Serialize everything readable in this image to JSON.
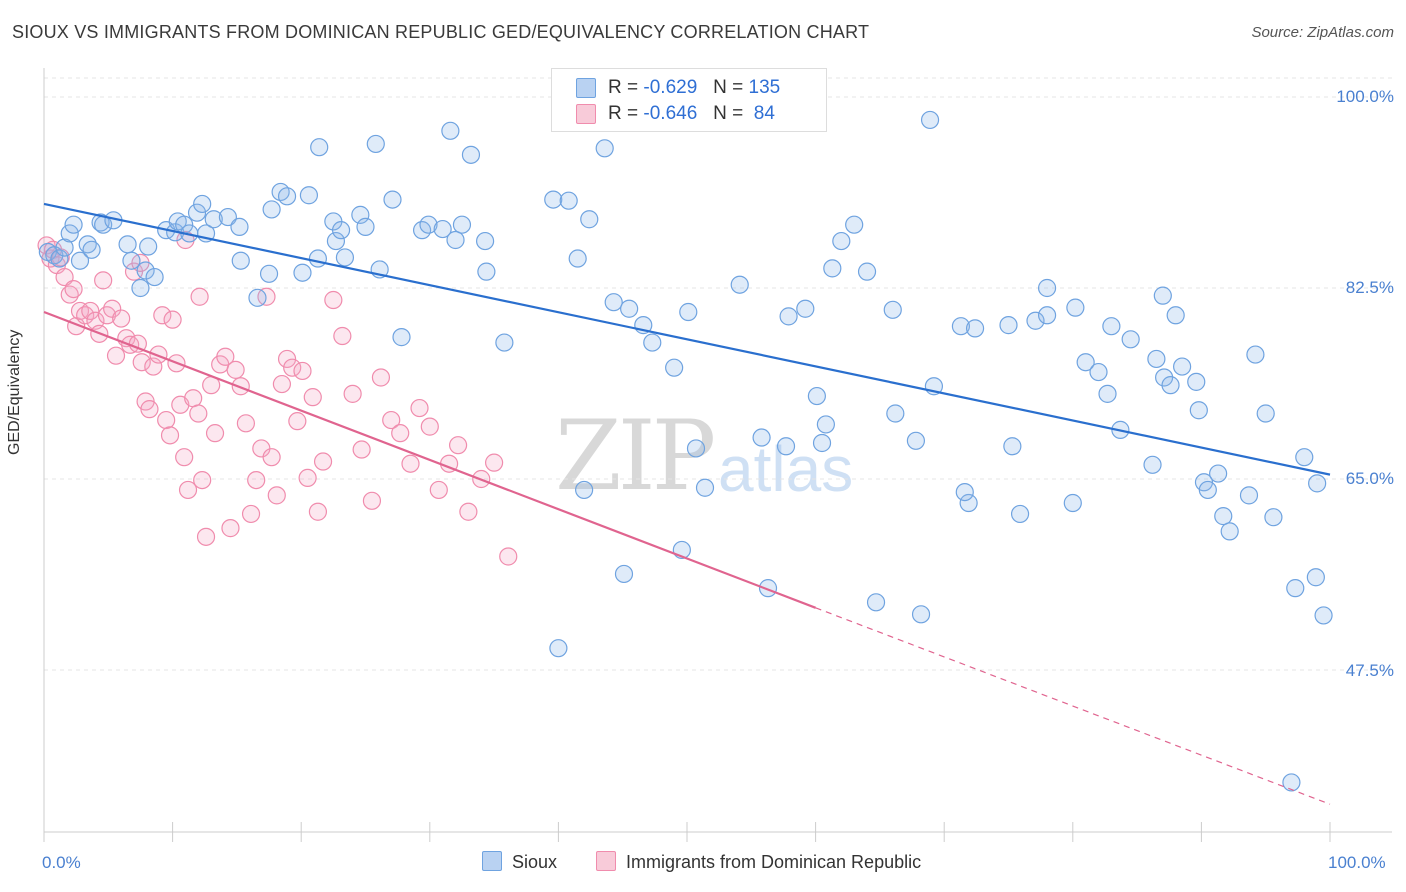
{
  "header": {
    "title": "SIOUX VS IMMIGRANTS FROM DOMINICAN REPUBLIC GED/EQUIVALENCY CORRELATION CHART",
    "source": "Source: ZipAtlas.com"
  },
  "watermark": {
    "zip": "ZIP",
    "atlas": "atlas"
  },
  "legend_top": {
    "rows": [
      {
        "r_label": "R =",
        "r_value": "-0.629",
        "n_label": "N =",
        "n_value": "135"
      },
      {
        "r_label": "R =",
        "r_value": "-0.646",
        "n_label": "N =",
        "n_value": " 84"
      }
    ]
  },
  "legend_bottom": {
    "items": [
      "Sioux",
      "Immigrants from Dominican Republic"
    ]
  },
  "colors": {
    "sioux": "#6fa3e0",
    "sioux_line": "#2a6fce",
    "dominican": "#f08cad",
    "dominican_line": "#e0648f",
    "tick_text": "#4a80d0"
  },
  "chart_data": {
    "type": "scatter",
    "title": "SIOUX VS IMMIGRANTS FROM DOMINICAN REPUBLIC GED/EQUIVALENCY CORRELATION CHART",
    "xlabel": "",
    "ylabel": "GED/Equivalency",
    "xlim": [
      0,
      100
    ],
    "ylim": [
      32,
      103
    ],
    "x_tick_labels": [
      "0.0%",
      "100.0%"
    ],
    "y_ticks": [
      100.0,
      82.5,
      65.0,
      47.5
    ],
    "y_tick_labels": [
      "100.0%",
      "82.5%",
      "65.0%",
      "47.5%"
    ],
    "grid": true,
    "legend": "top-center",
    "series": [
      {
        "name": "Sioux",
        "trend": {
          "x": [
            0,
            100
          ],
          "y": [
            90.2,
            65.4
          ]
        },
        "points": [
          [
            0.3,
            85.8
          ],
          [
            0.8,
            85.5
          ],
          [
            1.2,
            85.2
          ],
          [
            1.6,
            86.2
          ],
          [
            2.0,
            87.5
          ],
          [
            2.3,
            88.3
          ],
          [
            2.8,
            85.0
          ],
          [
            3.4,
            86.5
          ],
          [
            3.7,
            86.0
          ],
          [
            4.4,
            88.5
          ],
          [
            4.6,
            88.3
          ],
          [
            5.4,
            88.7
          ],
          [
            6.5,
            86.5
          ],
          [
            6.8,
            85.0
          ],
          [
            7.5,
            82.5
          ],
          [
            7.9,
            84.1
          ],
          [
            8.1,
            86.3
          ],
          [
            8.6,
            83.5
          ],
          [
            9.5,
            87.8
          ],
          [
            10.2,
            87.6
          ],
          [
            10.4,
            88.6
          ],
          [
            10.9,
            88.3
          ],
          [
            11.3,
            87.5
          ],
          [
            11.9,
            89.4
          ],
          [
            12.3,
            90.2
          ],
          [
            12.6,
            87.5
          ],
          [
            13.2,
            88.8
          ],
          [
            14.3,
            89.0
          ],
          [
            15.2,
            88.1
          ],
          [
            15.3,
            85.0
          ],
          [
            17.5,
            83.8
          ],
          [
            16.6,
            81.6
          ],
          [
            17.7,
            89.7
          ],
          [
            18.4,
            91.3
          ],
          [
            18.9,
            90.9
          ],
          [
            20.1,
            83.9
          ],
          [
            20.6,
            91.0
          ],
          [
            21.3,
            85.2
          ],
          [
            21.4,
            95.4
          ],
          [
            22.5,
            88.6
          ],
          [
            22.7,
            86.8
          ],
          [
            23.1,
            87.8
          ],
          [
            23.4,
            85.3
          ],
          [
            24.6,
            89.2
          ],
          [
            25.0,
            88.1
          ],
          [
            25.8,
            95.7
          ],
          [
            26.1,
            84.2
          ],
          [
            27.1,
            90.6
          ],
          [
            27.8,
            78.0
          ],
          [
            29.4,
            87.8
          ],
          [
            29.9,
            88.3
          ],
          [
            31.0,
            87.9
          ],
          [
            31.6,
            96.9
          ],
          [
            32.0,
            86.9
          ],
          [
            32.5,
            88.3
          ],
          [
            33.2,
            94.7
          ],
          [
            34.3,
            86.8
          ],
          [
            34.4,
            84.0
          ],
          [
            35.8,
            77.5
          ],
          [
            39.6,
            90.6
          ],
          [
            40.8,
            90.5
          ],
          [
            41.5,
            85.2
          ],
          [
            42.4,
            88.8
          ],
          [
            43.6,
            95.3
          ],
          [
            44.3,
            81.2
          ],
          [
            45.5,
            80.6
          ],
          [
            46.6,
            79.1
          ],
          [
            47.3,
            77.5
          ],
          [
            49.0,
            75.2
          ],
          [
            50.1,
            80.3
          ],
          [
            50.7,
            67.8
          ],
          [
            51.4,
            64.2
          ],
          [
            54.1,
            82.8
          ],
          [
            55.8,
            68.8
          ],
          [
            57.9,
            79.9
          ],
          [
            59.2,
            80.6
          ],
          [
            57.7,
            68.0
          ],
          [
            56.3,
            55.0
          ],
          [
            60.5,
            68.3
          ],
          [
            61.3,
            84.3
          ],
          [
            62.0,
            86.8
          ],
          [
            63.0,
            88.3
          ],
          [
            64.0,
            84.0
          ],
          [
            64.7,
            53.7
          ],
          [
            66.0,
            80.5
          ],
          [
            67.8,
            68.5
          ],
          [
            68.9,
            97.9
          ],
          [
            68.2,
            52.6
          ],
          [
            71.3,
            79.0
          ],
          [
            71.9,
            62.8
          ],
          [
            72.4,
            78.8
          ],
          [
            75.0,
            79.1
          ],
          [
            75.3,
            68.0
          ],
          [
            77.1,
            79.5
          ],
          [
            78.0,
            80.0
          ],
          [
            78.0,
            82.5
          ],
          [
            80.0,
            62.8
          ],
          [
            81.0,
            75.7
          ],
          [
            82.0,
            74.8
          ],
          [
            82.7,
            72.8
          ],
          [
            83.7,
            69.5
          ],
          [
            84.5,
            77.8
          ],
          [
            86.2,
            66.3
          ],
          [
            87.1,
            74.3
          ],
          [
            87.6,
            73.6
          ],
          [
            88.5,
            75.3
          ],
          [
            89.8,
            71.3
          ],
          [
            90.2,
            64.7
          ],
          [
            91.3,
            65.5
          ],
          [
            91.7,
            61.6
          ],
          [
            92.2,
            60.2
          ],
          [
            93.7,
            63.5
          ],
          [
            95.0,
            71.0
          ],
          [
            95.6,
            61.5
          ],
          [
            97.3,
            55.0
          ],
          [
            98.0,
            67.0
          ],
          [
            98.9,
            56.0
          ],
          [
            99.5,
            52.5
          ],
          [
            97.0,
            37.2
          ],
          [
            99.0,
            64.6
          ],
          [
            40.0,
            49.5
          ],
          [
            42.0,
            64.0
          ],
          [
            49.6,
            58.5
          ],
          [
            45.1,
            56.3
          ],
          [
            60.1,
            72.6
          ],
          [
            66.2,
            71.0
          ],
          [
            60.8,
            70.0
          ],
          [
            71.6,
            63.8
          ],
          [
            80.2,
            80.7
          ],
          [
            83.0,
            79.0
          ],
          [
            86.5,
            76.0
          ],
          [
            75.9,
            61.8
          ],
          [
            94.2,
            76.4
          ],
          [
            89.6,
            73.9
          ],
          [
            88.0,
            80.0
          ],
          [
            87.0,
            81.8
          ],
          [
            90.5,
            64.0
          ],
          [
            69.2,
            73.5
          ]
        ]
      },
      {
        "name": "Immigrants from Dominican Republic",
        "trend": {
          "x": [
            0,
            60
          ],
          "y": [
            80.3,
            53.2
          ]
        },
        "trend_dashed": {
          "x": [
            60,
            100
          ],
          "y": [
            53.2,
            35.2
          ]
        },
        "points": [
          [
            0.2,
            86.4
          ],
          [
            0.5,
            85.2
          ],
          [
            0.7,
            86.0
          ],
          [
            1.0,
            84.6
          ],
          [
            1.3,
            85.3
          ],
          [
            1.6,
            83.5
          ],
          [
            2.0,
            81.9
          ],
          [
            2.3,
            82.4
          ],
          [
            2.5,
            79.0
          ],
          [
            2.8,
            80.4
          ],
          [
            3.2,
            80.0
          ],
          [
            3.6,
            80.4
          ],
          [
            4.0,
            79.5
          ],
          [
            4.3,
            78.3
          ],
          [
            4.6,
            83.2
          ],
          [
            4.9,
            80.0
          ],
          [
            5.3,
            80.6
          ],
          [
            5.6,
            76.3
          ],
          [
            6.0,
            79.7
          ],
          [
            6.4,
            77.9
          ],
          [
            6.7,
            77.3
          ],
          [
            7.0,
            84.0
          ],
          [
            7.3,
            77.4
          ],
          [
            7.6,
            75.7
          ],
          [
            7.9,
            72.1
          ],
          [
            8.2,
            71.4
          ],
          [
            8.5,
            75.3
          ],
          [
            8.9,
            76.4
          ],
          [
            9.2,
            80.0
          ],
          [
            9.5,
            70.4
          ],
          [
            9.8,
            69.0
          ],
          [
            10.0,
            79.6
          ],
          [
            10.3,
            75.6
          ],
          [
            10.6,
            71.8
          ],
          [
            10.9,
            67.0
          ],
          [
            11.2,
            64.0
          ],
          [
            11.6,
            72.4
          ],
          [
            12.0,
            71.0
          ],
          [
            12.3,
            64.9
          ],
          [
            12.6,
            59.7
          ],
          [
            13.0,
            73.6
          ],
          [
            13.3,
            69.2
          ],
          [
            13.7,
            75.5
          ],
          [
            14.1,
            76.2
          ],
          [
            14.5,
            60.5
          ],
          [
            14.9,
            75.0
          ],
          [
            15.3,
            73.5
          ],
          [
            15.7,
            70.1
          ],
          [
            16.1,
            61.8
          ],
          [
            16.5,
            64.9
          ],
          [
            16.9,
            67.8
          ],
          [
            17.3,
            81.7
          ],
          [
            17.7,
            67.0
          ],
          [
            18.1,
            63.5
          ],
          [
            18.5,
            73.7
          ],
          [
            18.9,
            76.0
          ],
          [
            19.3,
            75.2
          ],
          [
            19.7,
            70.3
          ],
          [
            20.1,
            74.9
          ],
          [
            20.5,
            65.1
          ],
          [
            20.9,
            72.5
          ],
          [
            21.3,
            62.0
          ],
          [
            21.7,
            66.6
          ],
          [
            22.5,
            81.4
          ],
          [
            23.2,
            78.1
          ],
          [
            24.0,
            72.8
          ],
          [
            24.7,
            67.7
          ],
          [
            25.5,
            63.0
          ],
          [
            26.2,
            74.3
          ],
          [
            27.0,
            70.4
          ],
          [
            27.7,
            69.2
          ],
          [
            28.5,
            66.4
          ],
          [
            29.2,
            71.5
          ],
          [
            30.0,
            69.8
          ],
          [
            30.7,
            64.0
          ],
          [
            31.5,
            66.4
          ],
          [
            32.2,
            68.1
          ],
          [
            33.0,
            62.0
          ],
          [
            34.0,
            65.0
          ],
          [
            35.0,
            66.5
          ],
          [
            36.1,
            57.9
          ],
          [
            11.0,
            86.9
          ],
          [
            7.5,
            84.8
          ],
          [
            12.1,
            81.7
          ]
        ]
      }
    ]
  }
}
